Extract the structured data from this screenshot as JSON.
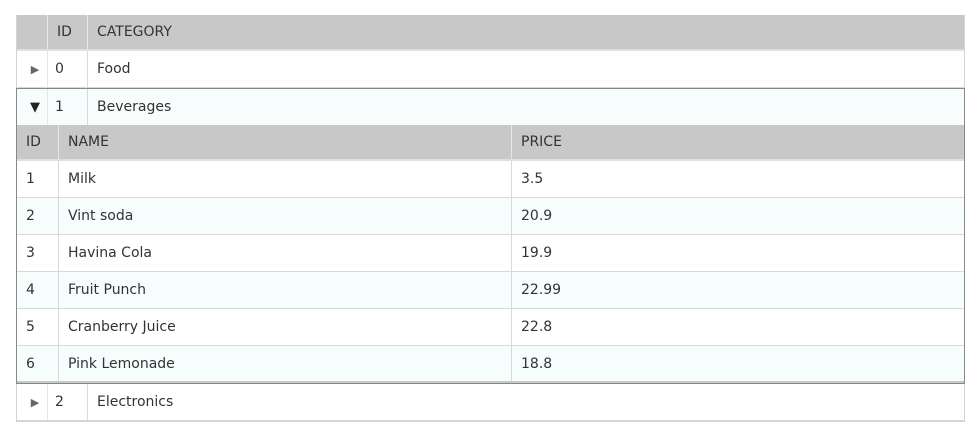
{
  "master": {
    "columns": {
      "id": "ID",
      "category": "CATEGORY"
    },
    "rows": [
      {
        "id": "0",
        "category": "Food",
        "expander": "▶"
      },
      {
        "id": "1",
        "category": "Beverages",
        "expander": "▼"
      },
      {
        "id": "2",
        "category": "Electronics",
        "expander": "▶"
      }
    ]
  },
  "detail": {
    "columns": {
      "id": "ID",
      "name": "NAME",
      "price": "PRICE"
    },
    "rows": [
      {
        "id": "1",
        "name": "Milk",
        "price": "3.5"
      },
      {
        "id": "2",
        "name": "Vint soda",
        "price": "20.9"
      },
      {
        "id": "3",
        "name": "Havina Cola",
        "price": "19.9"
      },
      {
        "id": "4",
        "name": "Fruit Punch",
        "price": "22.99"
      },
      {
        "id": "5",
        "name": "Cranberry Juice",
        "price": "22.8"
      },
      {
        "id": "6",
        "name": "Pink Lemonade",
        "price": "18.8"
      }
    ]
  }
}
